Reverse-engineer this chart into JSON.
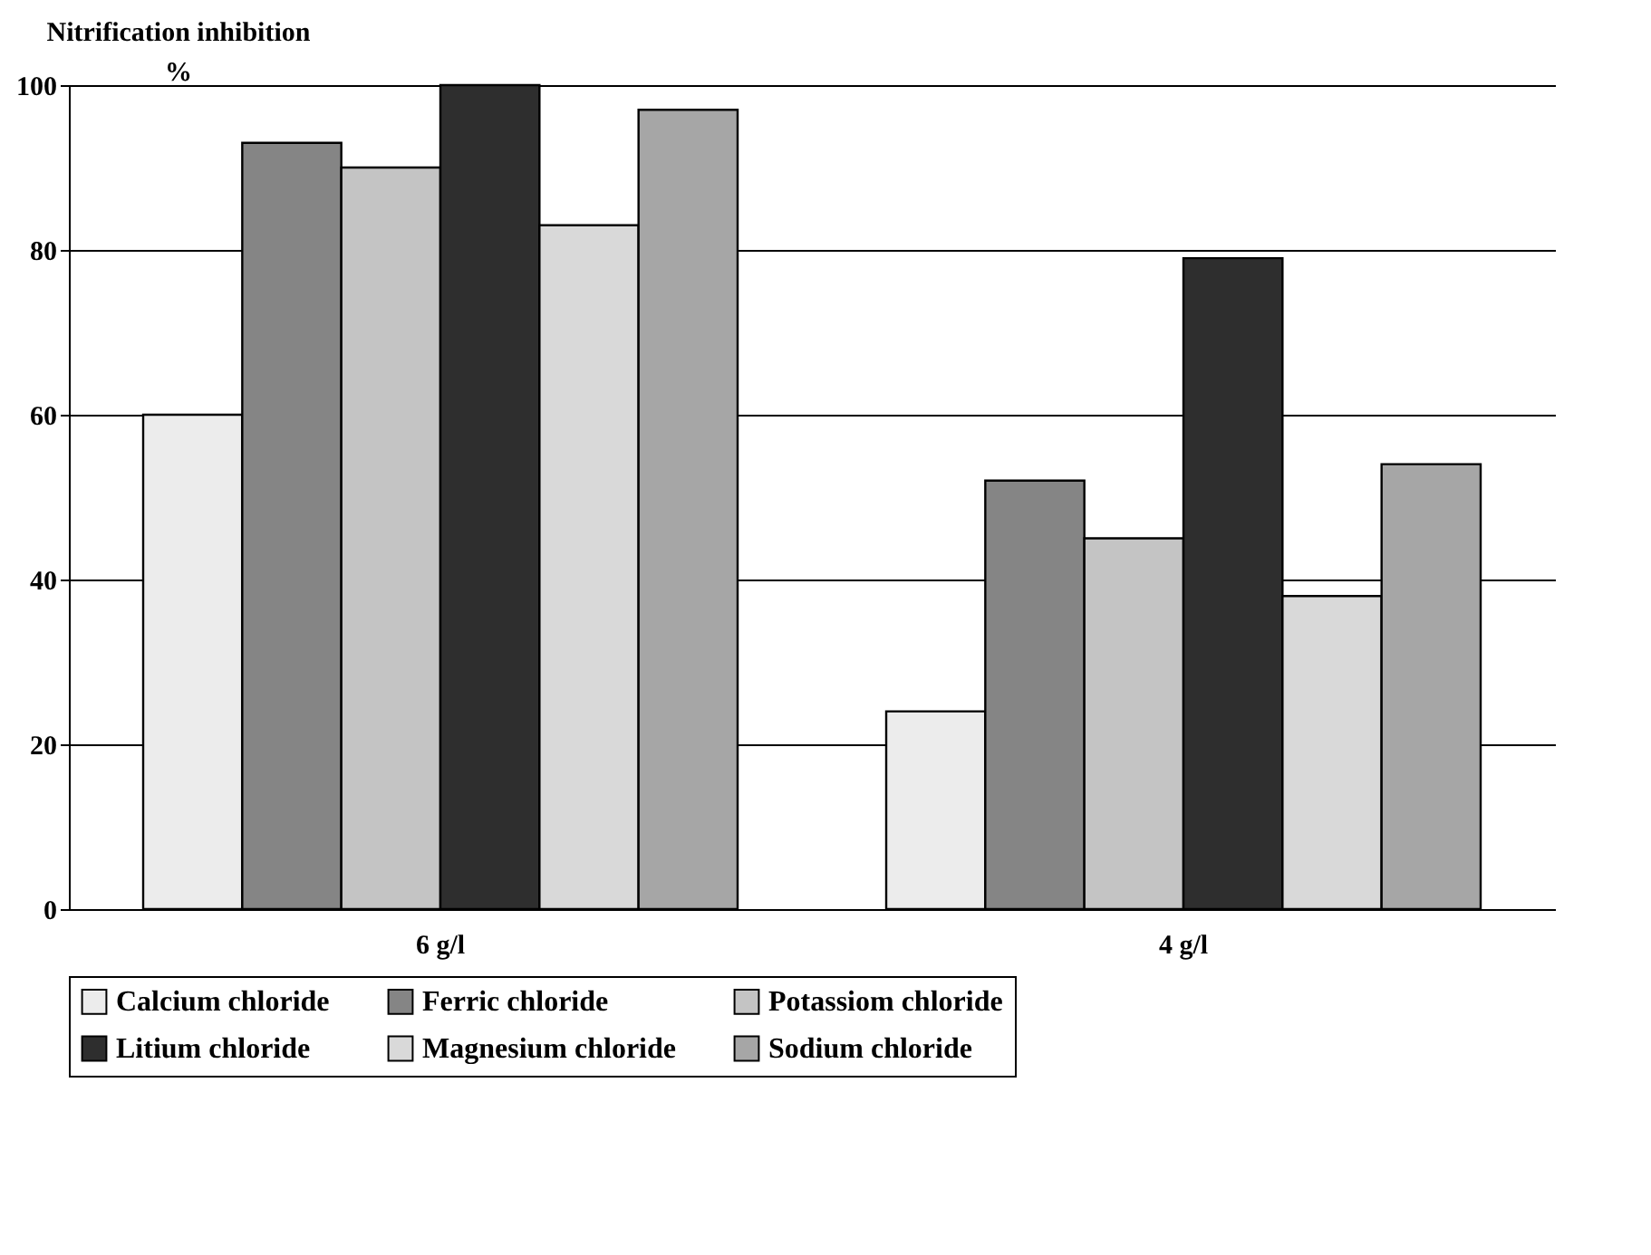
{
  "chart_data": {
    "type": "bar",
    "ylabel": "Nitrification inhibition %",
    "categories": [
      "6 g/l",
      "4 g/l"
    ],
    "series": [
      {
        "name": "Calcium chloride",
        "color": "#ececec",
        "values": [
          60,
          24
        ]
      },
      {
        "name": "Ferric chloride",
        "color": "#858585",
        "values": [
          93,
          52
        ]
      },
      {
        "name": "Potassiom chloride",
        "color": "#c4c4c4",
        "values": [
          90,
          45
        ]
      },
      {
        "name": "Litium chloride",
        "color": "#2e2e2e",
        "values": [
          100,
          79
        ]
      },
      {
        "name": "Magnesium chloride",
        "color": "#d9d9d9",
        "values": [
          83,
          38
        ]
      },
      {
        "name": "Sodium chloride",
        "color": "#a6a6a6",
        "values": [
          97,
          54
        ]
      }
    ],
    "ylim": [
      0,
      100
    ],
    "yticks": [
      0,
      20,
      40,
      60,
      80,
      100
    ],
    "grid": "y",
    "legend": "bottom"
  }
}
